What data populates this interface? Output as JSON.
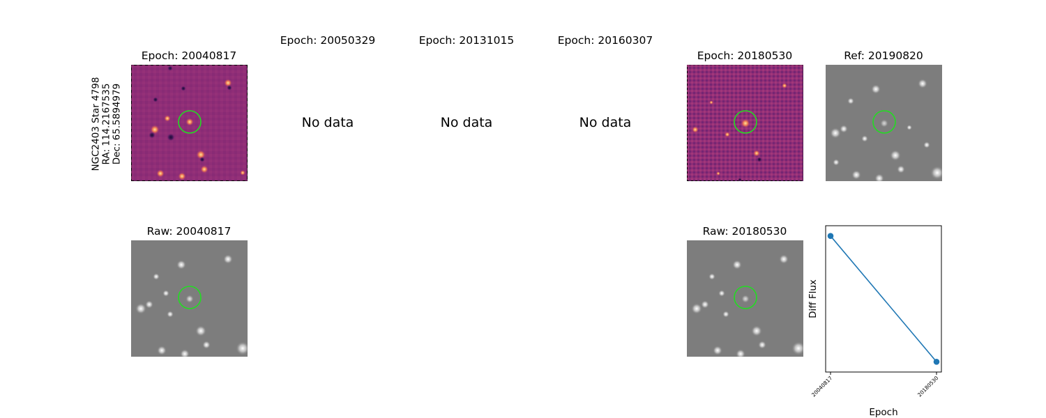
{
  "star_label": {
    "name": "NGC2403 Star 4798",
    "ra": "RA: 114.2167535",
    "dec": "Dec: 65.5894979"
  },
  "panels": {
    "top": [
      {
        "title": "Epoch: 20040817"
      },
      {
        "title": "Epoch: 20050329",
        "no_data": "No data"
      },
      {
        "title": "Epoch: 20131015",
        "no_data": "No data"
      },
      {
        "title": "Epoch: 20160307",
        "no_data": "No data"
      },
      {
        "title": "Epoch: 20180530"
      },
      {
        "title": "Ref: 20190820"
      }
    ],
    "bottom": [
      {
        "title": "Raw: 20040817"
      },
      {
        "title": "Raw: 20180530"
      }
    ]
  },
  "colors": {
    "diff_cmap": "magma",
    "marker_circle": "#22dd22",
    "series_line": "#1f77b4"
  },
  "chart_data": {
    "type": "line",
    "xlabel": "Epoch",
    "ylabel": "Diff Flux",
    "x": [
      "20040817",
      "20180530"
    ],
    "series": [
      {
        "values": [
          1.0,
          0.0
        ]
      }
    ],
    "grid": false
  }
}
